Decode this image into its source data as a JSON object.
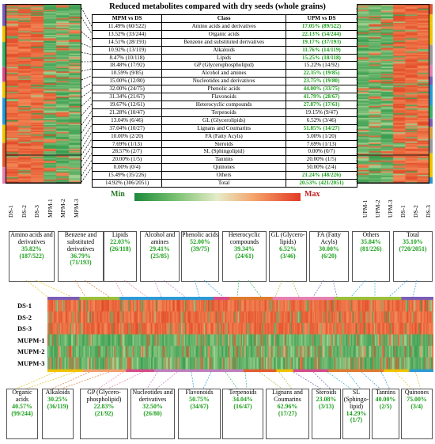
{
  "title": "Reduced metabolites compared with dry seeds (whole grains)",
  "table": {
    "headers": [
      "MPM vs DS",
      "Class",
      "UPM vs DS"
    ],
    "rows": [
      {
        "mpm": "11.49% (60/522)",
        "cls": "Amino acids and derivatives",
        "upm": "17.05% (89/522)",
        "upm_hi": true
      },
      {
        "mpm": "13.52% (33/244)",
        "cls": "Organic acids",
        "upm": "22.13% (54/244)",
        "upm_hi": true
      },
      {
        "mpm": "14.51% (28/193)",
        "cls": "Benzene and substituted derivatives",
        "upm": "19.17% (37/193)",
        "upm_hi": true
      },
      {
        "mpm": "10.92% (13/119)",
        "cls": "Alkaloids",
        "upm": "11.76% (14/119)",
        "upm_hi": true
      },
      {
        "mpm": "8.47% (10/118)",
        "cls": "Lipids",
        "upm": "15.25% (18/118)",
        "upm_hi": true
      },
      {
        "mpm": "18.48% (17/92)",
        "cls": "GP (Glycerophospholipid)",
        "upm": "15.22% (14/92)",
        "upm_hi": false
      },
      {
        "mpm": "10.59% (9/85)",
        "cls": "Alcohol and amines",
        "upm": "22.35% (19/85)",
        "upm_hi": true
      },
      {
        "mpm": "15.00% (12/80)",
        "cls": "Nucleotides and derivatives",
        "upm": "23.75% (19/80)",
        "upm_hi": true
      },
      {
        "mpm": "32.00% (24/75)",
        "cls": "Phenolic acids",
        "upm": "44.00% (33/75)",
        "upm_hi": true
      },
      {
        "mpm": "31.34% (21/67)",
        "cls": "Flavonoids",
        "upm": "41.79% (28/67)",
        "upm_hi": true
      },
      {
        "mpm": "19.67% (12/61)",
        "cls": "Heterocyclic compounds",
        "upm": "27.87% (17/61)",
        "upm_hi": true
      },
      {
        "mpm": "21.28% (10/47)",
        "cls": "Terpenoids",
        "upm": "19.15% (9/47)",
        "upm_hi": false
      },
      {
        "mpm": "13.04% (6/46)",
        "cls": "GL (Glycerolipids)",
        "upm": "6.52% (3/46)",
        "upm_hi": false
      },
      {
        "mpm": "37.04% (10/27)",
        "cls": "Lignans and Coumarins",
        "upm": "51.85% (14/27)",
        "upm_hi": true
      },
      {
        "mpm": "10.00% (2/20)",
        "cls": "FA (Fatty Acyls)",
        "upm": "5.00% (1/20)",
        "upm_hi": false
      },
      {
        "mpm": "7.69% (1/13)",
        "cls": "Steroids",
        "upm": "7.69% (1/13)",
        "upm_hi": false
      },
      {
        "mpm": "28.57% (2/7)",
        "cls": "SL (Sphingolipid)",
        "upm": "0.00% (0/7)",
        "upm_hi": false
      },
      {
        "mpm": "20.00% (1/5)",
        "cls": "Tannins",
        "upm": "20.00% (1/5)",
        "upm_hi": false
      },
      {
        "mpm": "0.00% (0/4)",
        "cls": "Quinones",
        "upm": "50.00% (2/4)",
        "upm_hi": false
      },
      {
        "mpm": "15.49% (35/226)",
        "cls": "Others",
        "upm": "21.24% (48/226)",
        "upm_hi": true
      },
      {
        "mpm": "14.92% (306/2051)",
        "cls": "Total",
        "upm": "20.53% (421/2051)",
        "upm_hi": true
      }
    ]
  },
  "left_samples": [
    "DS-1",
    "DS-2",
    "DS-3",
    "MPM-1",
    "MPM-2",
    "MPM-3"
  ],
  "right_samples": [
    "UPM-1",
    "UPM-2",
    "UPM-3",
    "DS-1",
    "DS-2",
    "DS-3"
  ],
  "scale": {
    "min": "Min",
    "max": "Max"
  },
  "mid_rows": [
    "DS-1",
    "DS-2",
    "DS-3",
    "MUPM-1",
    "MUPM-2",
    "MUPM-3"
  ],
  "top_boxes": [
    {
      "name": "Amino acids and derivatives",
      "pct": "35.82%",
      "frac": "(187/522)"
    },
    {
      "name": "Benzene and substituted derivatives",
      "pct": "36.79%",
      "frac": "(71/193)"
    },
    {
      "name": "Lipids",
      "pct": "22.03%",
      "frac": "(26/118)"
    },
    {
      "name": "Alcohol and amines",
      "pct": "29.41%",
      "frac": "(25/85)"
    },
    {
      "name": "Phenolic acids",
      "pct": "52.00%",
      "frac": "(39/75)"
    },
    {
      "name": "Heterocyclic compounds",
      "pct": "39.34%",
      "frac": "(24/61)"
    },
    {
      "name": "GL (Glycero-lipids)",
      "pct": "6.52%",
      "frac": "(3/46)"
    },
    {
      "name": "FA (Fatty Acyls)",
      "pct": "30.00%",
      "frac": "(6/20)"
    },
    {
      "name": "Others",
      "pct": "35.84%",
      "frac": "(81/226)"
    },
    {
      "name": "Total",
      "pct": "35.10%",
      "frac": "(720/2051)"
    }
  ],
  "bottom_boxes": [
    {
      "name": "Organic acids",
      "pct": "40.57%",
      "frac": "(99/244)"
    },
    {
      "name": "Alkaloids",
      "pct": "30.25%",
      "frac": "(36/119)"
    },
    {
      "name": "GP (Glycero-phospholipid)",
      "pct": "22.83%",
      "frac": "(21/92)"
    },
    {
      "name": "Nucleotides and derivatives",
      "pct": "32.50%",
      "frac": "(26/80)"
    },
    {
      "name": "Flavonoids",
      "pct": "50.75%",
      "frac": "(34/67)"
    },
    {
      "name": "Terpenoids",
      "pct": "34.04%",
      "frac": "(16/47)"
    },
    {
      "name": "Lignans and Coumarins",
      "pct": "62.96%",
      "frac": "(17/27)"
    },
    {
      "name": "Steroids",
      "pct": "23.08%",
      "frac": "(3/13)"
    },
    {
      "name": "SL (Sphingo-lipid)",
      "pct": "14.29%",
      "frac": "(1/7)"
    },
    {
      "name": "Tannins",
      "pct": "40.00%",
      "frac": "(2/5)"
    },
    {
      "name": "Quinones",
      "pct": "75.00%",
      "frac": "(3/4)"
    }
  ],
  "chart_data": {
    "type": "heatmap",
    "title": "Reduced metabolites compared with dry seeds (whole grains)",
    "categories": [
      "Amino acids and derivatives",
      "Organic acids",
      "Benzene and substituted derivatives",
      "Alkaloids",
      "Lipids",
      "GP (Glycerophospholipid)",
      "Alcohol and amines",
      "Nucleotides and derivatives",
      "Phenolic acids",
      "Flavonoids",
      "Heterocyclic compounds",
      "Terpenoids",
      "GL (Glycerolipids)",
      "Lignans and Coumarins",
      "FA (Fatty Acyls)",
      "Steroids",
      "SL (Sphingolipid)",
      "Tannins",
      "Quinones",
      "Others",
      "Total"
    ],
    "series": [
      {
        "name": "MPM vs DS",
        "values": [
          11.49,
          13.52,
          14.51,
          10.92,
          8.47,
          18.48,
          10.59,
          15.0,
          32.0,
          31.34,
          19.67,
          21.28,
          13.04,
          37.04,
          10.0,
          7.69,
          28.57,
          20.0,
          0.0,
          15.49,
          14.92
        ]
      },
      {
        "name": "UPM vs DS",
        "values": [
          17.05,
          22.13,
          19.17,
          11.76,
          15.25,
          15.22,
          22.35,
          23.75,
          44.0,
          41.79,
          27.87,
          19.15,
          6.52,
          51.85,
          5.0,
          7.69,
          0.0,
          20.0,
          50.0,
          21.24,
          20.53
        ]
      }
    ],
    "colors": {
      "min": "#1b8a3a",
      "mid": "#e6ecc8",
      "max": "#e23a25",
      "highlight": "#1a9e1a"
    }
  }
}
